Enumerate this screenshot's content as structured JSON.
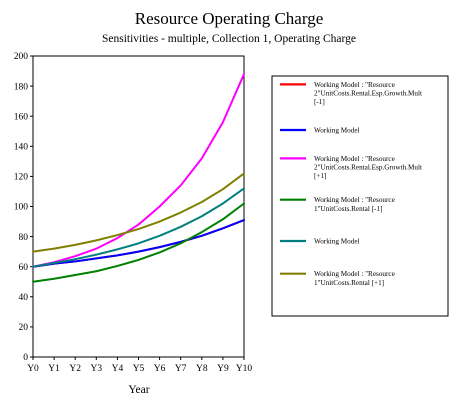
{
  "chart_data": {
    "type": "line",
    "title": "Resource Operating Charge",
    "subtitle": "Sensitivities - multiple, Collection 1, Operating Charge",
    "xlabel": "Year",
    "ylabel": "",
    "categories": [
      "Y0",
      "Y1",
      "Y2",
      "Y3",
      "Y4",
      "Y5",
      "Y6",
      "Y7",
      "Y8",
      "Y9",
      "Y10"
    ],
    "ylim": [
      0,
      200
    ],
    "yticks": [
      0,
      20,
      40,
      60,
      80,
      100,
      120,
      140,
      160,
      180,
      200
    ],
    "grid": false,
    "legend_position": "right",
    "series": [
      {
        "name": "Working Model : \"Resource 2\"UnitCosts.Rental.Esp.Growth.Mult [-1]",
        "color": "#ff0000",
        "values": [
          60,
          62,
          63.5,
          65.5,
          67.5,
          70,
          73,
          76.5,
          80.5,
          85.5,
          91
        ]
      },
      {
        "name": "Working Model",
        "color": "#0000ff",
        "values": [
          60,
          62,
          63.5,
          65.5,
          67.5,
          70,
          73,
          76.5,
          80.5,
          85.5,
          91
        ]
      },
      {
        "name": "Working Model : \"Resource 2\"UnitCosts.Rental.Esp.Growth.Mult [+1]",
        "color": "#ff00ff",
        "values": [
          60,
          63,
          67,
          72,
          79,
          88,
          100,
          114,
          132,
          156,
          188
        ]
      },
      {
        "name": "Working Model : \"Resource 1\"UnitCosts.Rental [-1]",
        "color": "#008000",
        "values": [
          50,
          52,
          54.5,
          57,
          60.5,
          64.5,
          69.5,
          75.5,
          83,
          91.5,
          102
        ]
      },
      {
        "name": "Working Model",
        "color": "#008080",
        "values": [
          60,
          62.5,
          65,
          68,
          71.5,
          75.5,
          80.5,
          86.5,
          93.5,
          102,
          112
        ]
      },
      {
        "name": "Working Model : \"Resource 1\"UnitCosts.Rental [+1]",
        "color": "#808000",
        "values": [
          70,
          72,
          74.5,
          77.5,
          81,
          85,
          90,
          96,
          103,
          111.5,
          122
        ]
      }
    ]
  }
}
